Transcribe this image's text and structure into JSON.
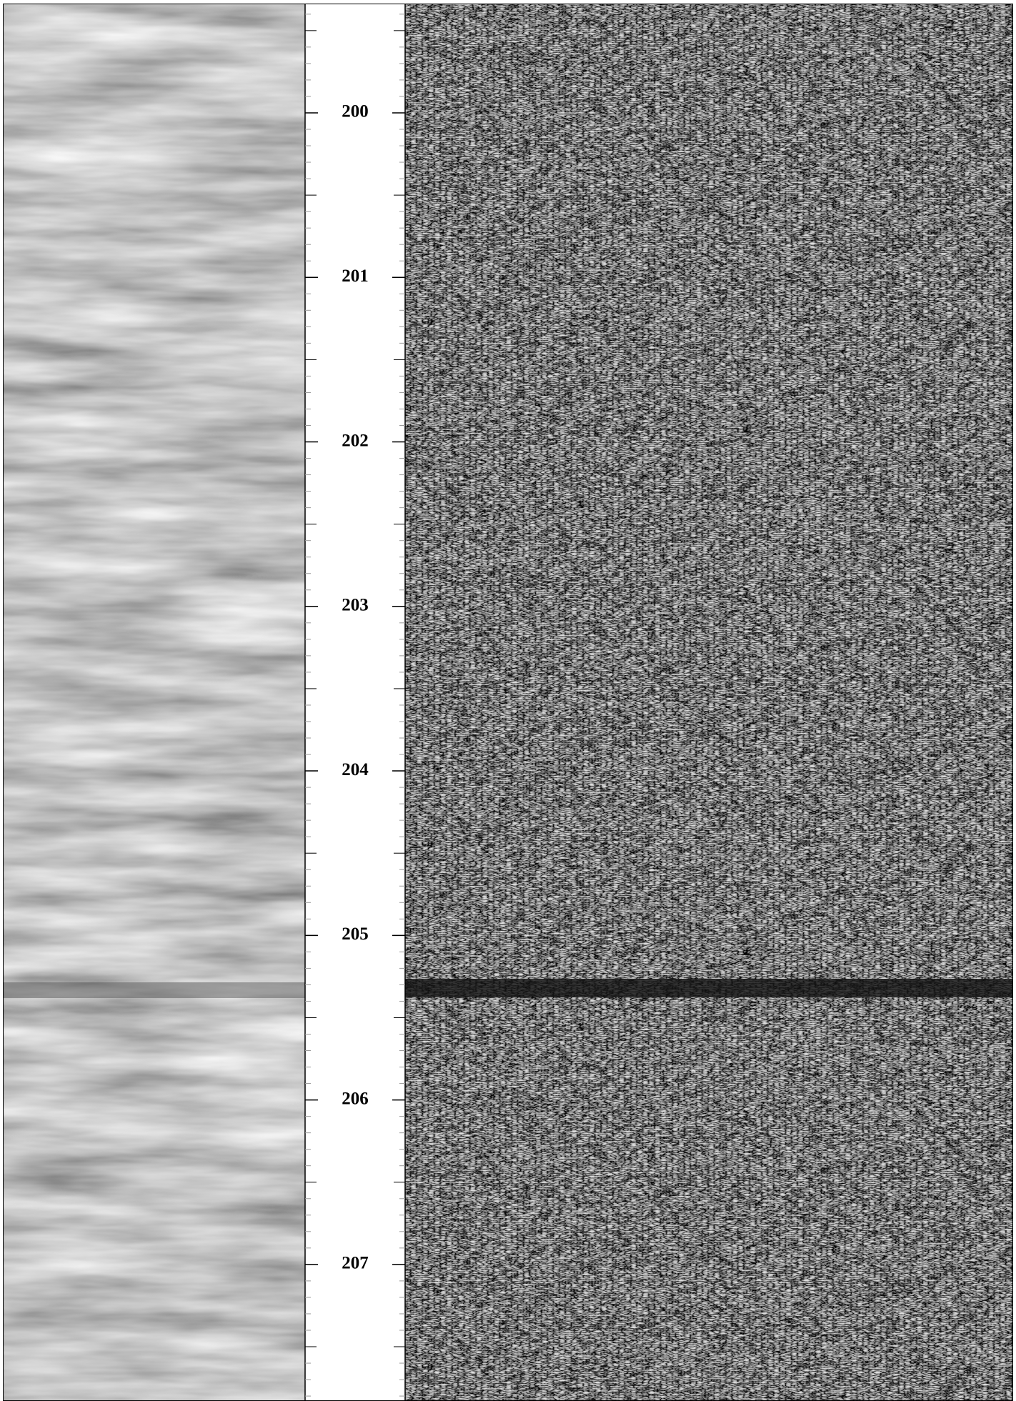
{
  "chart_data": {
    "type": "depth-track",
    "ylim": [
      199.34,
      207.83
    ],
    "yticks": [
      200,
      201,
      202,
      203,
      204,
      205,
      206,
      207
    ]
  }
}
